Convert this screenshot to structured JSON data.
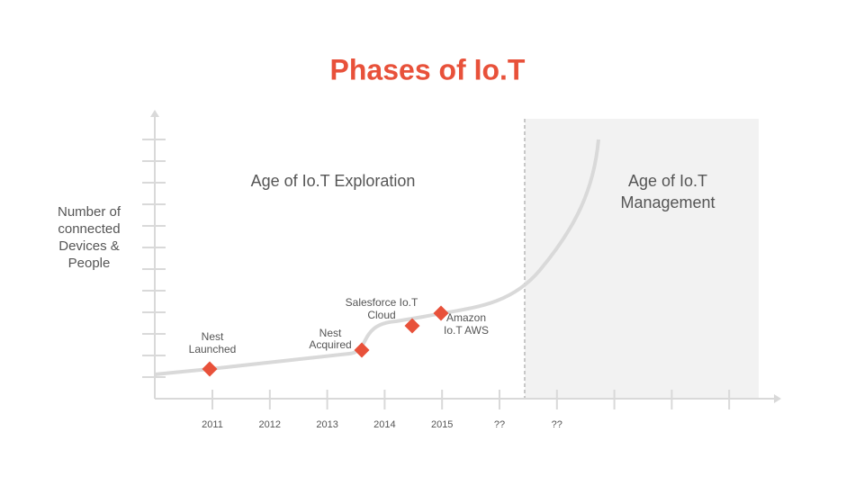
{
  "title": "Phases of Io.T",
  "phases": [
    "Age of Io.T Exploration",
    [
      "Age of Io.T",
      "Management"
    ]
  ],
  "y_axis_label": [
    "Number of",
    "connected",
    "Devices &",
    "People"
  ],
  "milestones": [
    [
      "Nest",
      "Launched"
    ],
    [
      "Nest",
      "Acquired"
    ],
    [
      "Salesforce Io.T",
      "Cloud"
    ],
    [
      "Amazon",
      "Io.T AWS"
    ]
  ],
  "x_labels": [
    "2011",
    "2012",
    "2013",
    "2014",
    "2015",
    "??",
    "??"
  ]
}
